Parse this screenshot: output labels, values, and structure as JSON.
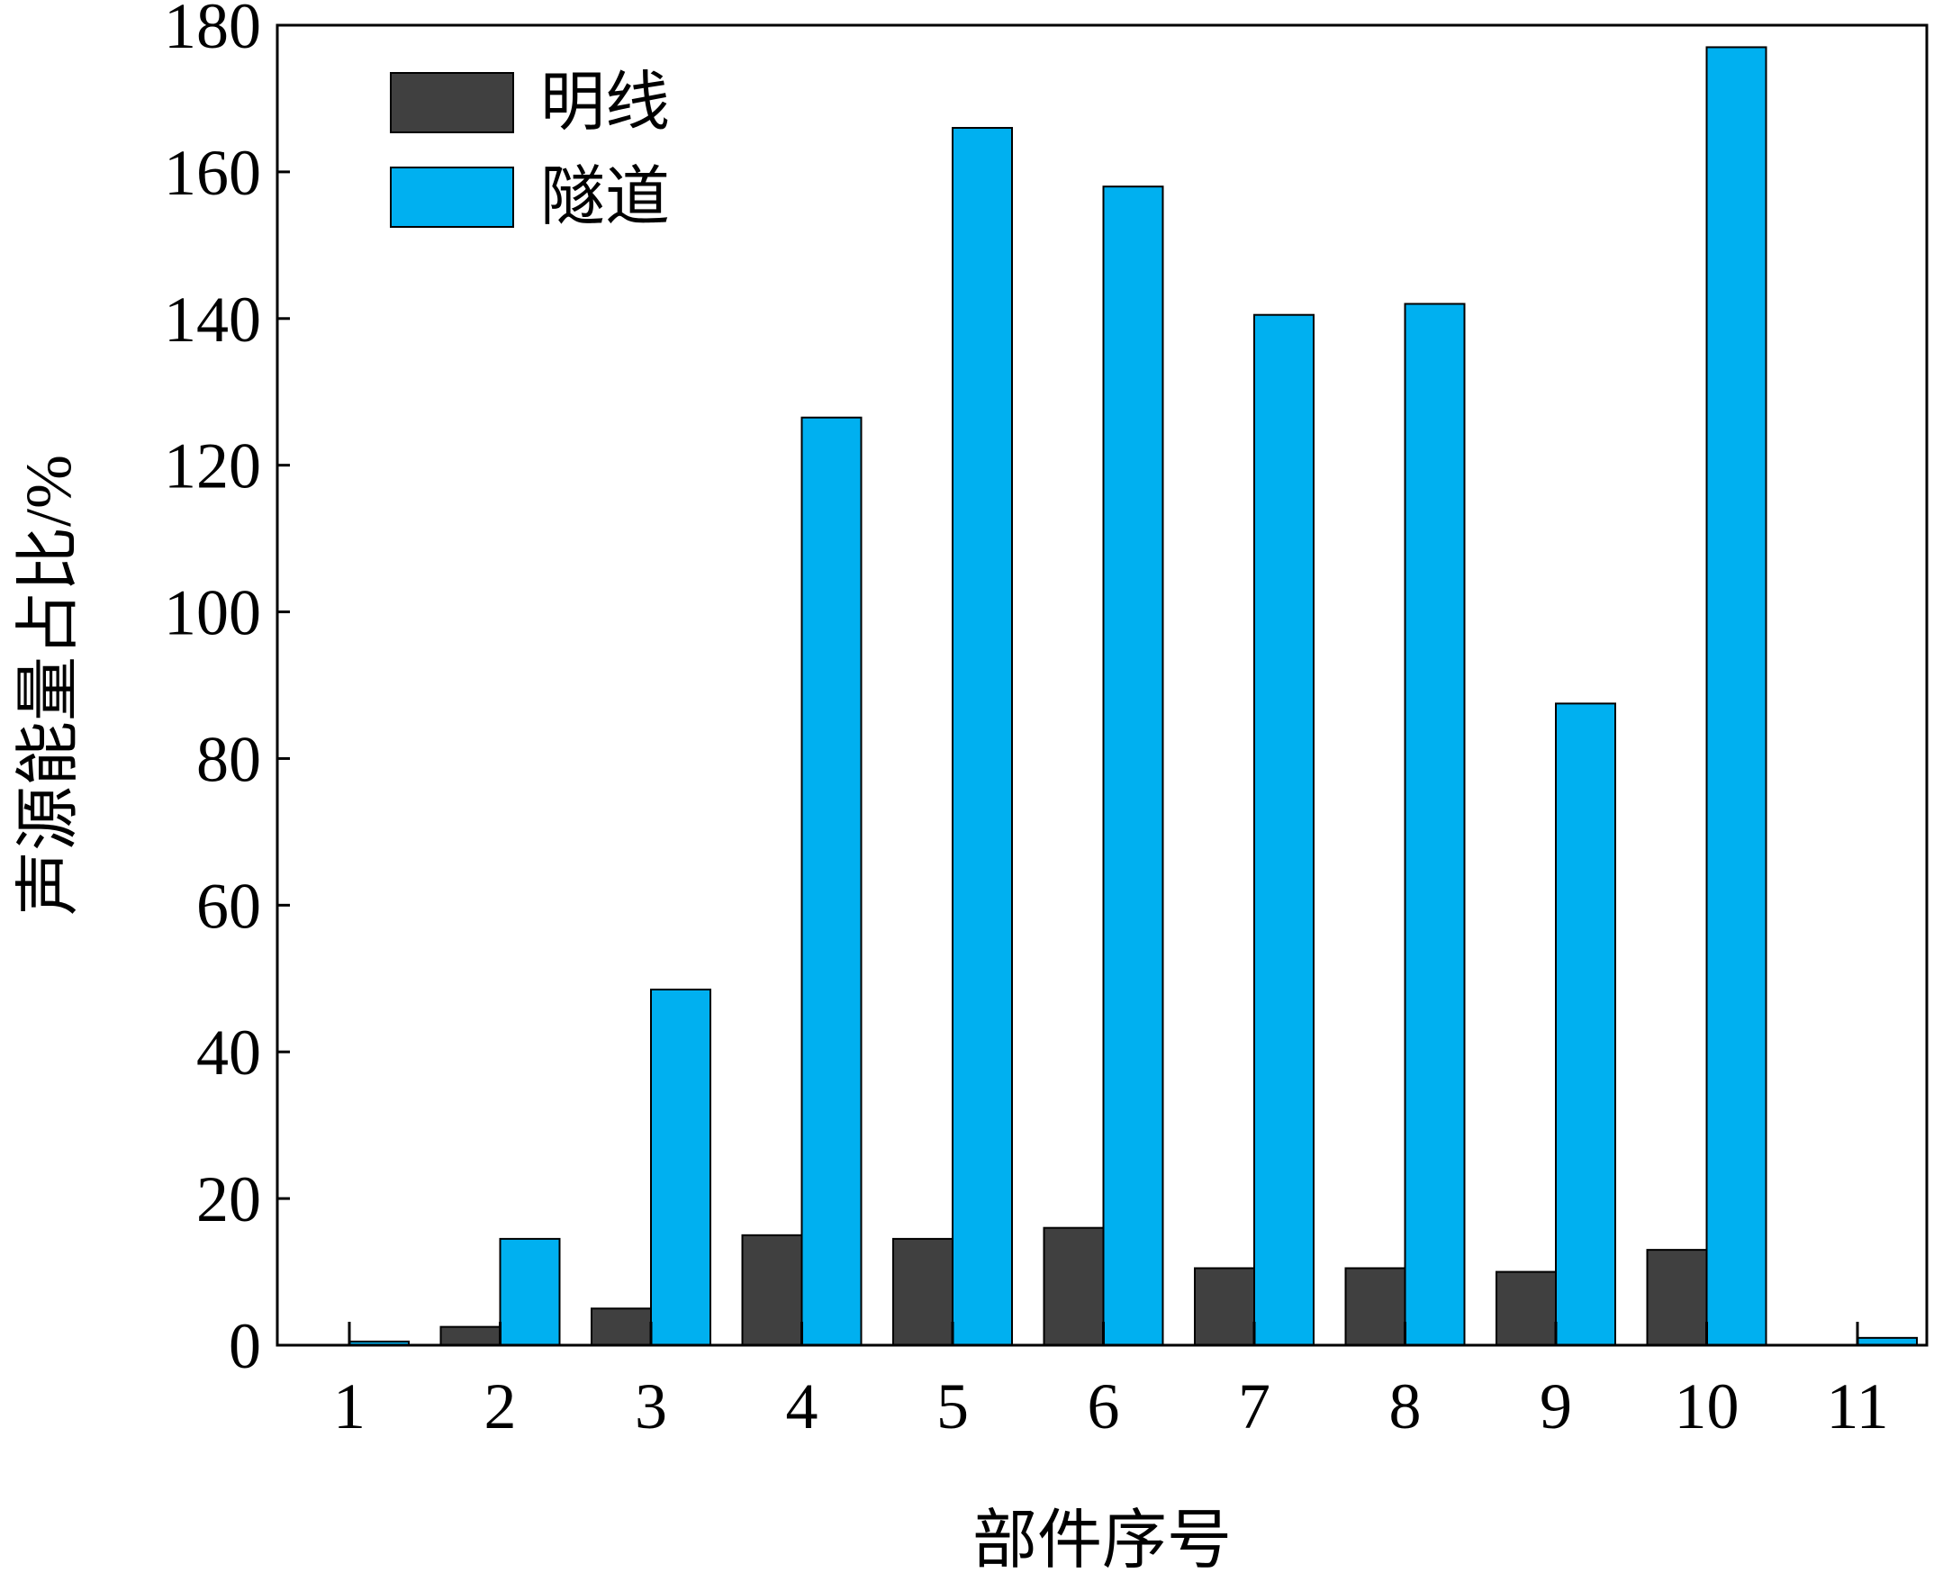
{
  "chart_data": {
    "type": "bar",
    "xlabel": "部件序号",
    "ylabel": "声源能量占比/%",
    "categories": [
      "1",
      "2",
      "3",
      "4",
      "5",
      "6",
      "7",
      "8",
      "9",
      "10",
      "11"
    ],
    "series": [
      {
        "name": "明线",
        "color": "#404040",
        "values": [
          0,
          2.5,
          5,
          15,
          14.5,
          16,
          10.5,
          10.5,
          10,
          13,
          0
        ]
      },
      {
        "name": "隧道",
        "color": "#00b0f0",
        "values": [
          0.5,
          14.5,
          48.5,
          126.5,
          166,
          158,
          140.5,
          142,
          87.5,
          177,
          1
        ]
      }
    ],
    "ylim": [
      0,
      180
    ],
    "yticks": [
      "0",
      "20",
      "40",
      "60",
      "80",
      "100",
      "120",
      "140",
      "160",
      "180"
    ],
    "legend_position": "top-left",
    "grid": false
  }
}
